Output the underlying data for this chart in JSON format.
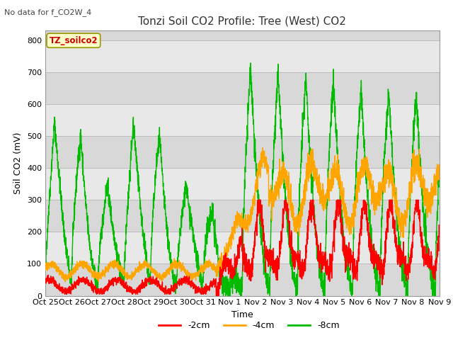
{
  "title": "Tonzi Soil CO2 Profile: Tree (West) CO2",
  "no_data_label": "No data for f_CO2W_4",
  "ylabel": "Soil CO2 (mV)",
  "xlabel": "Time",
  "ylim": [
    0,
    830
  ],
  "yticks": [
    0,
    100,
    200,
    300,
    400,
    500,
    600,
    700,
    800
  ],
  "xtick_labels": [
    "Oct 25",
    "Oct 26",
    "Oct 27",
    "Oct 28",
    "Oct 29",
    "Oct 30",
    "Oct 31",
    "Nov 1",
    "Nov 2",
    "Nov 3",
    "Nov 4",
    "Nov 5",
    "Nov 6",
    "Nov 7",
    "Nov 8",
    "Nov 9"
  ],
  "legend_label": "TZ_soilco2",
  "series_labels": [
    "-2cm",
    "-4cm",
    "-8cm"
  ],
  "series_colors": [
    "#ff0000",
    "#ffa500",
    "#00bb00"
  ],
  "band_colors": [
    "#e0e0e0",
    "#d0d0d0"
  ],
  "grid_color": "#c8c8c8",
  "plot_bg": "#d8d8d8",
  "line_width": 1.0,
  "title_fontsize": 11,
  "label_fontsize": 9,
  "tick_fontsize": 8
}
